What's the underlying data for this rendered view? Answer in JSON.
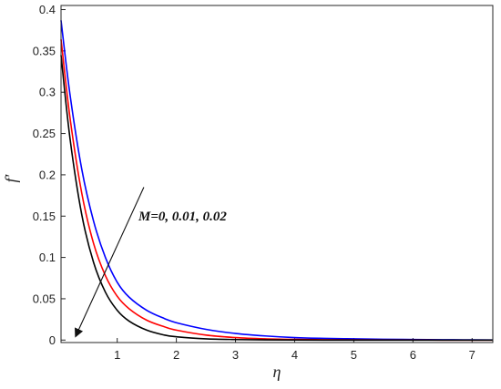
{
  "chart_data": {
    "type": "line",
    "title": "",
    "xlabel": "η",
    "ylabel": "f′",
    "xlim": [
      0.05,
      7.35
    ],
    "ylim": [
      -0.003,
      0.405
    ],
    "xticks": [
      1,
      2,
      3,
      4,
      5,
      6,
      7
    ],
    "yticks": [
      0,
      0.05,
      0.1,
      0.15,
      0.2,
      0.25,
      0.3,
      0.35,
      0.4
    ],
    "ytick_labels": [
      "0",
      "0.05",
      "0.1",
      "0.15",
      "0.2",
      "0.25",
      "0.3",
      "0.35",
      "0.4"
    ],
    "grid": false,
    "annotation": {
      "text": "M=0, 0.01, 0.02",
      "arrow_from": [
        1.45,
        0.185
      ],
      "arrow_to": [
        0.3,
        0.005
      ]
    },
    "series": [
      {
        "color": "#0000ff",
        "x": [
          0.05,
          0.2,
          0.4,
          0.6,
          0.8,
          1.0,
          1.2,
          1.5,
          1.8,
          2.0,
          2.5,
          3.0,
          3.5,
          4.0,
          4.5,
          5.0,
          5.5,
          6.0,
          6.5,
          7.0,
          7.35
        ],
        "y": [
          0.387,
          0.298,
          0.207,
          0.144,
          0.1,
          0.07,
          0.052,
          0.036,
          0.026,
          0.021,
          0.013,
          0.008,
          0.005,
          0.003,
          0.002,
          0.0015,
          0.001,
          0.0007,
          0.0004,
          0.0002,
          0.0001
        ]
      },
      {
        "color": "#ff0000",
        "x": [
          0.05,
          0.2,
          0.4,
          0.6,
          0.8,
          1.0,
          1.2,
          1.5,
          1.8,
          2.0,
          2.5,
          3.0,
          3.5,
          4.0,
          4.5,
          5.0,
          5.5,
          6.0,
          6.5,
          7.0,
          7.35
        ],
        "y": [
          0.364,
          0.27,
          0.178,
          0.117,
          0.078,
          0.053,
          0.038,
          0.024,
          0.016,
          0.012,
          0.006,
          0.003,
          0.0015,
          0.0008,
          0.0004,
          0.0002,
          0.0001,
          0.0001,
          0.0,
          0.0,
          0.0
        ]
      },
      {
        "color": "#000000",
        "x": [
          0.05,
          0.2,
          0.4,
          0.6,
          0.8,
          1.0,
          1.2,
          1.5,
          1.8,
          2.0,
          2.5,
          3.0,
          3.5,
          4.0,
          4.5,
          5.0,
          5.5,
          6.0,
          6.5,
          7.0,
          7.35
        ],
        "y": [
          0.345,
          0.245,
          0.152,
          0.094,
          0.058,
          0.036,
          0.023,
          0.012,
          0.006,
          0.004,
          0.0015,
          0.0006,
          0.0002,
          0.0001,
          0.0,
          0.0,
          0.0,
          0.0,
          0.0,
          0.0,
          0.0
        ]
      }
    ]
  }
}
